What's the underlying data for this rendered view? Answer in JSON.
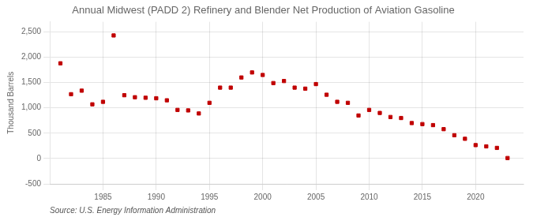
{
  "chart_data": {
    "type": "scatter",
    "title": "Annual Midwest (PADD 2) Refinery and Blender Net Production of Aviation Gasoline",
    "ylabel": "Thousand Barrels",
    "annotation": "Source: U.S. Energy Information Administration",
    "color": "#c00000",
    "marker": "square",
    "x": [
      1981,
      1982,
      1983,
      1984,
      1985,
      1986,
      1987,
      1988,
      1989,
      1990,
      1991,
      1992,
      1993,
      1994,
      1995,
      1996,
      1997,
      1998,
      1999,
      2000,
      2001,
      2002,
      2003,
      2004,
      2005,
      2006,
      2007,
      2008,
      2009,
      2010,
      2011,
      2012,
      2013,
      2014,
      2015,
      2016,
      2017,
      2018,
      2019,
      2020,
      2021,
      2022,
      2023
    ],
    "values": [
      1880,
      1270,
      1340,
      1070,
      1120,
      2430,
      1250,
      1210,
      1200,
      1190,
      1150,
      960,
      950,
      890,
      1100,
      1400,
      1400,
      1600,
      1700,
      1650,
      1490,
      1530,
      1400,
      1380,
      1470,
      1260,
      1120,
      1100,
      850,
      960,
      900,
      820,
      800,
      700,
      680,
      660,
      580,
      460,
      390,
      265,
      240,
      210,
      10
    ],
    "xlim": [
      1980,
      2024.5
    ],
    "xticks": [
      1985,
      1990,
      1995,
      2000,
      2005,
      2010,
      2015,
      2020
    ],
    "ylim": [
      -500,
      2700
    ],
    "yticks": [
      -500,
      0,
      500,
      {
        "value": 1000,
        "label": "1,000"
      },
      {
        "value": 1500,
        "label": "1,500"
      },
      {
        "value": 2000,
        "label": "2,000"
      },
      {
        "value": 2500,
        "label": "2,500"
      }
    ],
    "grid": true
  }
}
